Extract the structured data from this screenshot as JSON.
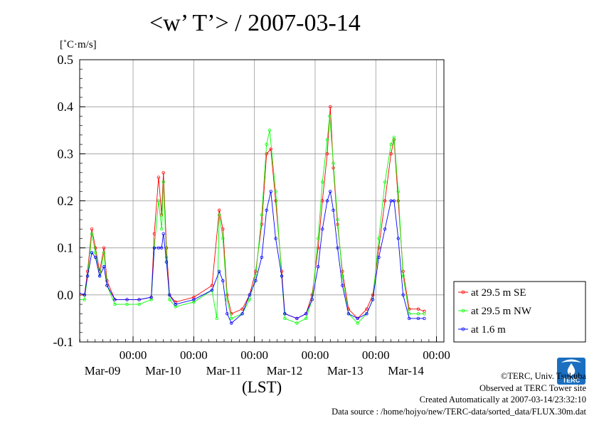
{
  "title": "<w’ T’> / 2007-03-14",
  "colors": {
    "se": "#ff0000",
    "nw": "#00ff00",
    "low": "#0000ff",
    "grid": "#999999",
    "logo": "#1a6fc0"
  },
  "chart_data": {
    "type": "line",
    "title": "<w’ T’> / 2007-03-14",
    "ylabel": "[˚C·m/s]",
    "xlabel": "(LST)",
    "ylim": [
      -0.1,
      0.5
    ],
    "xlim": [
      0,
      6
    ],
    "x_unit": "days from start of Mar-08 (LST)",
    "yticks": [
      "0.5",
      "0.4",
      "0.3",
      "0.2",
      "0.1",
      "0.0",
      "-0.1"
    ],
    "xticks": [
      {
        "x": 1,
        "time": "00:00",
        "date": "Mar-09"
      },
      {
        "x": 2,
        "time": "00:00",
        "date": "Mar-10"
      },
      {
        "x": 3,
        "time": "00:00",
        "date": "Mar-11"
      },
      {
        "x": 4,
        "time": "00:00",
        "date": "Mar-12"
      },
      {
        "x": 5,
        "time": "00:00",
        "date": "Mar-13"
      },
      {
        "x": 6,
        "time": "00:00",
        "date": "Mar-14"
      }
    ],
    "grid": true,
    "legend_position": "bottom-right",
    "series": [
      {
        "name": "at 29.5 m SE",
        "color": "#ff0000",
        "points": [
          [
            0.0,
            0.0
          ],
          [
            0.05,
            0.01
          ],
          [
            0.1,
            0.0
          ],
          [
            0.2,
            0.0
          ],
          [
            0.25,
            0.05
          ],
          [
            0.32,
            0.14
          ],
          [
            0.38,
            0.1
          ],
          [
            0.45,
            0.05
          ],
          [
            0.52,
            0.1
          ],
          [
            0.57,
            0.03
          ],
          [
            0.7,
            -0.01
          ],
          [
            0.9,
            -0.01
          ],
          [
            1.1,
            -0.01
          ],
          [
            1.3,
            -0.005
          ],
          [
            1.35,
            0.13
          ],
          [
            1.42,
            0.25
          ],
          [
            1.47,
            0.17
          ],
          [
            1.5,
            0.26
          ],
          [
            1.55,
            0.1
          ],
          [
            1.6,
            0.0
          ],
          [
            1.7,
            -0.015
          ],
          [
            2.0,
            -0.005
          ],
          [
            2.3,
            0.02
          ],
          [
            2.42,
            0.18
          ],
          [
            2.48,
            0.14
          ],
          [
            2.55,
            0.0
          ],
          [
            2.62,
            -0.04
          ],
          [
            2.8,
            -0.03
          ],
          [
            2.92,
            -0.0
          ],
          [
            3.02,
            0.05
          ],
          [
            3.12,
            0.15
          ],
          [
            3.2,
            0.3
          ],
          [
            3.27,
            0.31
          ],
          [
            3.35,
            0.2
          ],
          [
            3.45,
            0.05
          ],
          [
            3.5,
            -0.04
          ],
          [
            3.7,
            -0.05
          ],
          [
            3.85,
            -0.04
          ],
          [
            3.95,
            0.0
          ],
          [
            4.05,
            0.1
          ],
          [
            4.12,
            0.2
          ],
          [
            4.2,
            0.3
          ],
          [
            4.25,
            0.4
          ],
          [
            4.3,
            0.27
          ],
          [
            4.37,
            0.15
          ],
          [
            4.45,
            0.05
          ],
          [
            4.55,
            -0.03
          ],
          [
            4.7,
            -0.05
          ],
          [
            4.85,
            -0.03
          ],
          [
            4.95,
            0.0
          ],
          [
            5.05,
            0.1
          ],
          [
            5.15,
            0.2
          ],
          [
            5.25,
            0.3
          ],
          [
            5.3,
            0.33
          ],
          [
            5.37,
            0.2
          ],
          [
            5.45,
            0.05
          ],
          [
            5.55,
            -0.03
          ],
          [
            5.7,
            -0.03
          ],
          [
            5.8,
            -0.035
          ]
        ]
      },
      {
        "name": "at 29.5 m NW",
        "color": "#00ff00",
        "points": [
          [
            0.0,
            -0.02
          ],
          [
            0.05,
            0.0
          ],
          [
            0.1,
            -0.01
          ],
          [
            0.2,
            -0.01
          ],
          [
            0.25,
            0.04
          ],
          [
            0.32,
            0.13
          ],
          [
            0.38,
            0.09
          ],
          [
            0.45,
            0.04
          ],
          [
            0.52,
            0.09
          ],
          [
            0.57,
            0.02
          ],
          [
            0.7,
            -0.02
          ],
          [
            0.9,
            -0.02
          ],
          [
            1.1,
            -0.02
          ],
          [
            1.3,
            -0.01
          ],
          [
            1.35,
            0.1
          ],
          [
            1.42,
            0.2
          ],
          [
            1.47,
            0.14
          ],
          [
            1.5,
            0.24
          ],
          [
            1.55,
            0.08
          ],
          [
            1.6,
            -0.01
          ],
          [
            1.7,
            -0.025
          ],
          [
            2.0,
            -0.015
          ],
          [
            2.3,
            0.01
          ],
          [
            2.38,
            -0.05
          ],
          [
            2.42,
            0.17
          ],
          [
            2.48,
            0.12
          ],
          [
            2.55,
            -0.01
          ],
          [
            2.62,
            -0.05
          ],
          [
            2.8,
            -0.04
          ],
          [
            2.92,
            -0.01
          ],
          [
            3.02,
            0.04
          ],
          [
            3.12,
            0.17
          ],
          [
            3.2,
            0.32
          ],
          [
            3.25,
            0.35
          ],
          [
            3.35,
            0.22
          ],
          [
            3.45,
            0.04
          ],
          [
            3.5,
            -0.05
          ],
          [
            3.7,
            -0.06
          ],
          [
            3.85,
            -0.05
          ],
          [
            3.95,
            -0.01
          ],
          [
            4.05,
            0.12
          ],
          [
            4.12,
            0.24
          ],
          [
            4.2,
            0.33
          ],
          [
            4.24,
            0.38
          ],
          [
            4.3,
            0.28
          ],
          [
            4.37,
            0.16
          ],
          [
            4.45,
            0.04
          ],
          [
            4.55,
            -0.04
          ],
          [
            4.7,
            -0.06
          ],
          [
            4.85,
            -0.04
          ],
          [
            4.95,
            -0.01
          ],
          [
            5.05,
            0.12
          ],
          [
            5.15,
            0.24
          ],
          [
            5.25,
            0.32
          ],
          [
            5.3,
            0.335
          ],
          [
            5.37,
            0.22
          ],
          [
            5.45,
            0.04
          ],
          [
            5.55,
            -0.04
          ],
          [
            5.7,
            -0.04
          ],
          [
            5.8,
            -0.04
          ]
        ]
      },
      {
        "name": "at 1.6 m",
        "color": "#0000ff",
        "points": [
          [
            0.0,
            0.005
          ],
          [
            0.05,
            0.005
          ],
          [
            0.1,
            0.005
          ],
          [
            0.2,
            0.0
          ],
          [
            0.25,
            0.04
          ],
          [
            0.32,
            0.09
          ],
          [
            0.38,
            0.08
          ],
          [
            0.45,
            0.04
          ],
          [
            0.52,
            0.06
          ],
          [
            0.57,
            0.02
          ],
          [
            0.7,
            -0.01
          ],
          [
            0.9,
            -0.01
          ],
          [
            1.1,
            -0.01
          ],
          [
            1.3,
            -0.005
          ],
          [
            1.35,
            0.1
          ],
          [
            1.42,
            0.1
          ],
          [
            1.47,
            0.1
          ],
          [
            1.5,
            0.13
          ],
          [
            1.55,
            0.07
          ],
          [
            1.6,
            0.0
          ],
          [
            1.7,
            -0.02
          ],
          [
            2.0,
            -0.01
          ],
          [
            2.3,
            0.01
          ],
          [
            2.42,
            0.05
          ],
          [
            2.48,
            0.03
          ],
          [
            2.55,
            -0.04
          ],
          [
            2.62,
            -0.06
          ],
          [
            2.8,
            -0.04
          ],
          [
            2.92,
            -0.0
          ],
          [
            3.02,
            0.03
          ],
          [
            3.12,
            0.08
          ],
          [
            3.2,
            0.18
          ],
          [
            3.27,
            0.22
          ],
          [
            3.35,
            0.12
          ],
          [
            3.45,
            0.04
          ],
          [
            3.5,
            -0.04
          ],
          [
            3.7,
            -0.05
          ],
          [
            3.85,
            -0.04
          ],
          [
            3.95,
            -0.01
          ],
          [
            4.05,
            0.06
          ],
          [
            4.12,
            0.14
          ],
          [
            4.2,
            0.2
          ],
          [
            4.25,
            0.22
          ],
          [
            4.3,
            0.18
          ],
          [
            4.37,
            0.1
          ],
          [
            4.45,
            0.02
          ],
          [
            4.55,
            -0.04
          ],
          [
            4.7,
            -0.05
          ],
          [
            4.85,
            -0.04
          ],
          [
            4.95,
            -0.01
          ],
          [
            5.05,
            0.08
          ],
          [
            5.15,
            0.14
          ],
          [
            5.25,
            0.2
          ],
          [
            5.3,
            0.2
          ],
          [
            5.37,
            0.12
          ],
          [
            5.45,
            0.0
          ],
          [
            5.55,
            -0.05
          ],
          [
            5.7,
            -0.05
          ],
          [
            5.8,
            -0.05
          ]
        ]
      }
    ]
  },
  "footer": {
    "line1": "©TERC, Univ. Tsukuba",
    "line2": "Observed at TERC Tower site",
    "line3": "Created Automatically at 2007-03-14/23:32:10",
    "line4": "Data source : /home/hojyo/new/TERC-data/sorted_data/FLUX.30m.dat"
  },
  "logo_text": "TERC",
  "logo_icon": "terc-logo-icon"
}
